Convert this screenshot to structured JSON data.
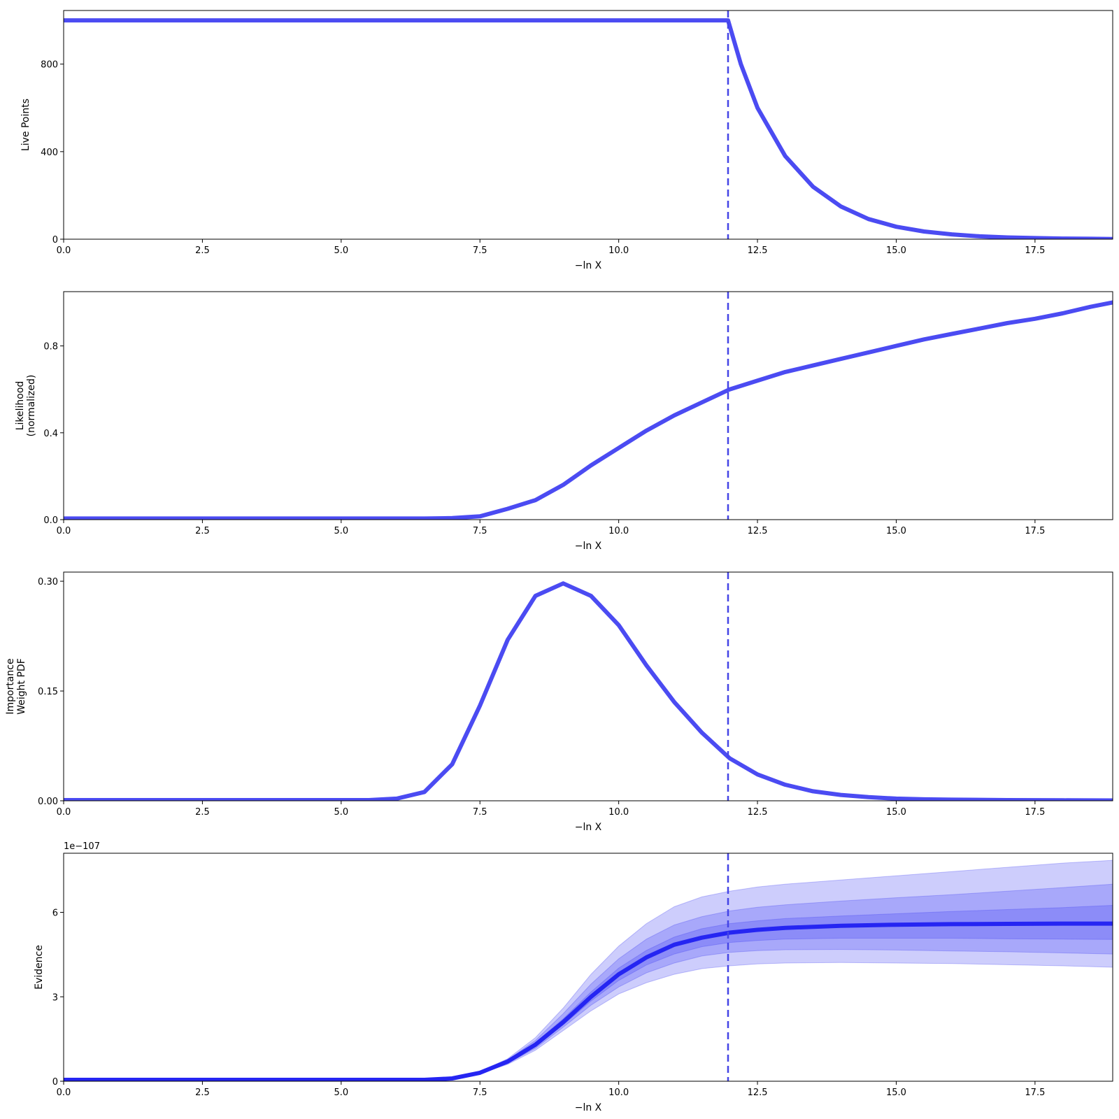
{
  "colors": {
    "line": "#4b4bf2",
    "band": "#3f3ff2",
    "median": "#2525f2",
    "vline": "#4444e6"
  },
  "chart_data": [
    {
      "type": "line",
      "xlabel": "−ln X",
      "ylabel": [
        "Live Points"
      ],
      "xlim": [
        0,
        18.9
      ],
      "ylim": [
        0,
        1045
      ],
      "xticks": [
        0.0,
        2.5,
        5.0,
        7.5,
        10.0,
        12.5,
        15.0,
        17.5
      ],
      "xtick_labels": [
        "0.0",
        "2.5",
        "5.0",
        "7.5",
        "10.0",
        "12.5",
        "15.0",
        "17.5"
      ],
      "yticks": [
        0,
        400,
        800
      ],
      "ytick_labels": [
        "0",
        "400",
        "800"
      ],
      "vline_x": 11.97,
      "series": [
        {
          "x": [
            0,
            11.97,
            12.2,
            12.5,
            13.0,
            13.5,
            14.0,
            14.5,
            15.0,
            15.5,
            16.0,
            16.5,
            17.0,
            17.5,
            18.0,
            18.5,
            18.9
          ],
          "y": [
            1000,
            1000,
            800,
            600,
            380,
            240,
            150,
            92,
            57,
            35,
            22,
            13,
            8,
            5,
            3,
            2,
            1
          ]
        }
      ]
    },
    {
      "type": "line",
      "xlabel": "−ln X",
      "ylabel": [
        "Likelihood",
        "(normalized)"
      ],
      "xlim": [
        0,
        18.9
      ],
      "ylim": [
        0,
        1.05
      ],
      "xticks": [
        0.0,
        2.5,
        5.0,
        7.5,
        10.0,
        12.5,
        15.0,
        17.5
      ],
      "xtick_labels": [
        "0.0",
        "2.5",
        "5.0",
        "7.5",
        "10.0",
        "12.5",
        "15.0",
        "17.5"
      ],
      "yticks": [
        0.0,
        0.4,
        0.8
      ],
      "ytick_labels": [
        "0.0",
        "0.4",
        "0.8"
      ],
      "vline_x": 11.97,
      "series": [
        {
          "x": [
            0,
            6.5,
            7.0,
            7.5,
            8.0,
            8.5,
            9.0,
            9.5,
            10.0,
            10.5,
            11.0,
            11.5,
            12.0,
            12.5,
            13.0,
            13.5,
            14.0,
            14.5,
            15.0,
            15.5,
            16.0,
            16.5,
            17.0,
            17.5,
            18.0,
            18.5,
            18.9
          ],
          "y": [
            0.005,
            0.005,
            0.007,
            0.015,
            0.05,
            0.09,
            0.16,
            0.25,
            0.33,
            0.41,
            0.48,
            0.54,
            0.6,
            0.64,
            0.68,
            0.71,
            0.74,
            0.77,
            0.8,
            0.83,
            0.855,
            0.88,
            0.905,
            0.925,
            0.95,
            0.98,
            1.0
          ]
        }
      ]
    },
    {
      "type": "line",
      "xlabel": "−ln X",
      "ylabel": [
        "Importance",
        "Weight PDF"
      ],
      "xlim": [
        0,
        18.9
      ],
      "ylim": [
        0,
        0.3125
      ],
      "xticks": [
        0.0,
        2.5,
        5.0,
        7.5,
        10.0,
        12.5,
        15.0,
        17.5
      ],
      "xtick_labels": [
        "0.0",
        "2.5",
        "5.0",
        "7.5",
        "10.0",
        "12.5",
        "15.0",
        "17.5"
      ],
      "yticks": [
        0.0,
        0.15,
        0.3
      ],
      "ytick_labels": [
        "0.00",
        "0.15",
        "0.30"
      ],
      "vline_x": 11.97,
      "series": [
        {
          "x": [
            0,
            5.5,
            6.0,
            6.5,
            7.0,
            7.5,
            8.0,
            8.5,
            9.0,
            9.5,
            10.0,
            10.5,
            11.0,
            11.5,
            12.0,
            12.5,
            13.0,
            13.5,
            14.0,
            14.5,
            15.0,
            15.5,
            16.0,
            17.0,
            18.0,
            18.9
          ],
          "y": [
            0.001,
            0.001,
            0.003,
            0.012,
            0.05,
            0.13,
            0.22,
            0.28,
            0.297,
            0.28,
            0.24,
            0.185,
            0.135,
            0.093,
            0.058,
            0.036,
            0.022,
            0.013,
            0.008,
            0.005,
            0.003,
            0.002,
            0.0015,
            0.001,
            0.0007,
            0.0005
          ]
        }
      ]
    },
    {
      "type": "area",
      "xlabel": "−ln X",
      "ylabel": [
        "Evidence"
      ],
      "offset_label": "1e−107",
      "xlim": [
        0,
        18.9
      ],
      "ylim": [
        0,
        8.1
      ],
      "xticks": [
        0.0,
        2.5,
        5.0,
        7.5,
        10.0,
        12.5,
        15.0,
        17.5
      ],
      "xtick_labels": [
        "0.0",
        "2.5",
        "5.0",
        "7.5",
        "10.0",
        "12.5",
        "15.0",
        "17.5"
      ],
      "yticks": [
        0,
        3,
        6
      ],
      "ytick_labels": [
        "0",
        "3",
        "6"
      ],
      "vline_x": 11.97,
      "x": [
        0,
        6.5,
        7.0,
        7.5,
        8.0,
        8.5,
        9.0,
        9.5,
        10.0,
        10.5,
        11.0,
        11.5,
        12.0,
        12.5,
        13.0,
        14.0,
        15.0,
        16.0,
        17.0,
        18.0,
        18.9
      ],
      "median": [
        0.05,
        0.05,
        0.1,
        0.3,
        0.7,
        1.3,
        2.1,
        3.0,
        3.8,
        4.4,
        4.85,
        5.1,
        5.28,
        5.38,
        5.45,
        5.52,
        5.56,
        5.58,
        5.59,
        5.6,
        5.6
      ],
      "bands": [
        {
          "name": "3sigma",
          "lower": [
            0.05,
            0.05,
            0.1,
            0.27,
            0.6,
            1.1,
            1.8,
            2.5,
            3.1,
            3.5,
            3.8,
            4.0,
            4.1,
            4.17,
            4.2,
            4.22,
            4.2,
            4.18,
            4.14,
            4.1,
            4.05
          ],
          "upper": [
            0.05,
            0.05,
            0.11,
            0.34,
            0.8,
            1.55,
            2.6,
            3.8,
            4.8,
            5.6,
            6.2,
            6.55,
            6.75,
            6.9,
            7.0,
            7.15,
            7.3,
            7.45,
            7.6,
            7.75,
            7.85
          ]
        },
        {
          "name": "2sigma",
          "lower": [
            0.05,
            0.05,
            0.1,
            0.28,
            0.63,
            1.17,
            1.92,
            2.7,
            3.35,
            3.85,
            4.2,
            4.45,
            4.58,
            4.64,
            4.67,
            4.68,
            4.66,
            4.63,
            4.6,
            4.56,
            4.52
          ],
          "upper": [
            0.05,
            0.05,
            0.1,
            0.32,
            0.76,
            1.45,
            2.4,
            3.45,
            4.35,
            5.05,
            5.55,
            5.85,
            6.05,
            6.18,
            6.27,
            6.4,
            6.52,
            6.63,
            6.75,
            6.88,
            7.0
          ]
        },
        {
          "name": "1sigma",
          "lower": [
            0.05,
            0.05,
            0.1,
            0.29,
            0.67,
            1.23,
            2.0,
            2.85,
            3.58,
            4.13,
            4.52,
            4.78,
            4.93,
            5.0,
            5.05,
            5.08,
            5.08,
            5.08,
            5.06,
            5.05,
            5.04
          ],
          "upper": [
            0.05,
            0.05,
            0.1,
            0.31,
            0.73,
            1.37,
            2.22,
            3.17,
            4.02,
            4.65,
            5.12,
            5.42,
            5.6,
            5.7,
            5.78,
            5.87,
            5.95,
            6.03,
            6.1,
            6.17,
            6.25
          ]
        }
      ]
    }
  ]
}
